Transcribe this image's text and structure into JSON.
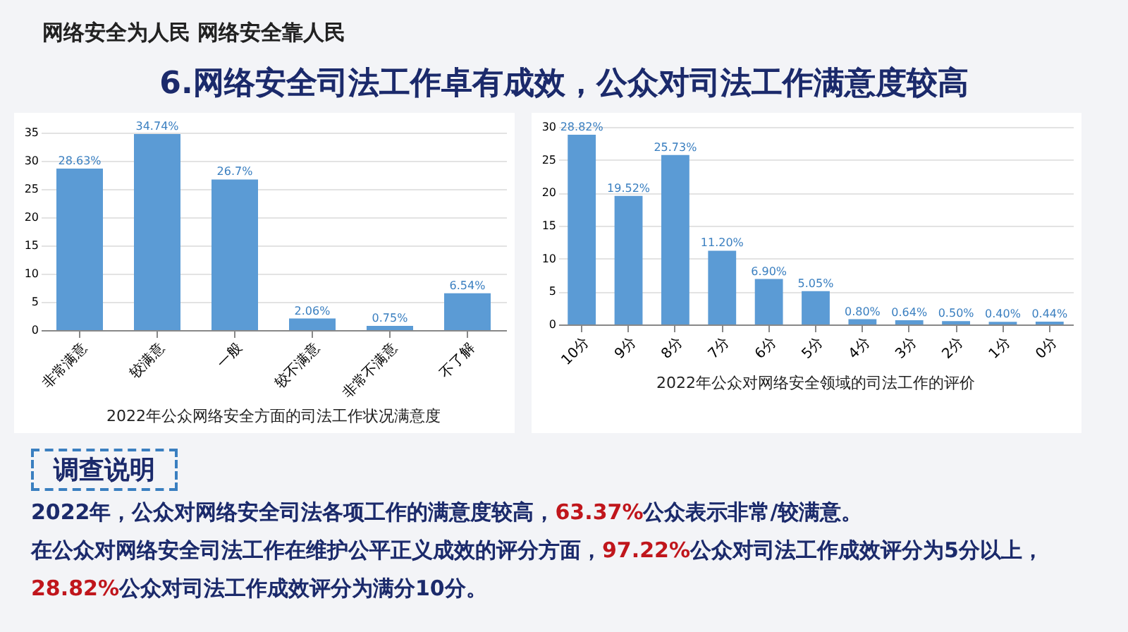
{
  "chart_data": [
    {
      "type": "other",
      "title": "6.网络安全司法工作卓有成效，公众对司法工作满意度较高",
      "annotations": [
        "网络安全为人民 网络安全靠人民",
        "调查说明",
        "2022年，公众对网络安全司法各项工作的满意度较高，63.37%公众表示非常/较满意。",
        "在公众对网络安全司法工作在维护公平正义成效的评分方面，97.22%公众对司法工作成效评分为5分以上，28.82%公众对司法工作成效评分为满分10分。"
      ]
    },
    {
      "type": "bar",
      "title": "2022年公众网络安全方面的司法工作状况满意度",
      "categories": [
        "非常满意",
        "较满意",
        "一般",
        "较不满意",
        "非常不满意",
        "不了解"
      ],
      "values": [
        28.63,
        34.74,
        26.7,
        2.06,
        0.75,
        6.54
      ],
      "value_labels": [
        "28.63%",
        "34.74%",
        "26.7%",
        "2.06%",
        "0.75%",
        "6.54%"
      ],
      "color": "#5b9bd5",
      "ylim": [
        0,
        35
      ],
      "yticks": [
        0,
        5,
        10,
        15,
        20,
        25,
        30,
        35
      ],
      "grid": "y"
    },
    {
      "type": "bar",
      "title": "2022年公众对网络安全领域的司法工作的评价",
      "categories": [
        "10分",
        "9分",
        "8分",
        "7分",
        "6分",
        "5分",
        "4分",
        "3分",
        "2分",
        "1分",
        "0分"
      ],
      "values": [
        28.82,
        19.52,
        25.73,
        11.2,
        6.9,
        5.05,
        0.8,
        0.64,
        0.5,
        0.4,
        0.44
      ],
      "value_labels": [
        "28.82%",
        "19.52%",
        "25.73%",
        "11.20%",
        "6.90%",
        "5.05%",
        "0.80%",
        "0.64%",
        "0.50%",
        "0.40%",
        "0.44%"
      ],
      "color": "#5b9bd5",
      "ylim": [
        0,
        30
      ],
      "yticks": [
        0,
        5,
        10,
        15,
        20,
        25,
        30
      ],
      "grid": "y"
    }
  ]
}
